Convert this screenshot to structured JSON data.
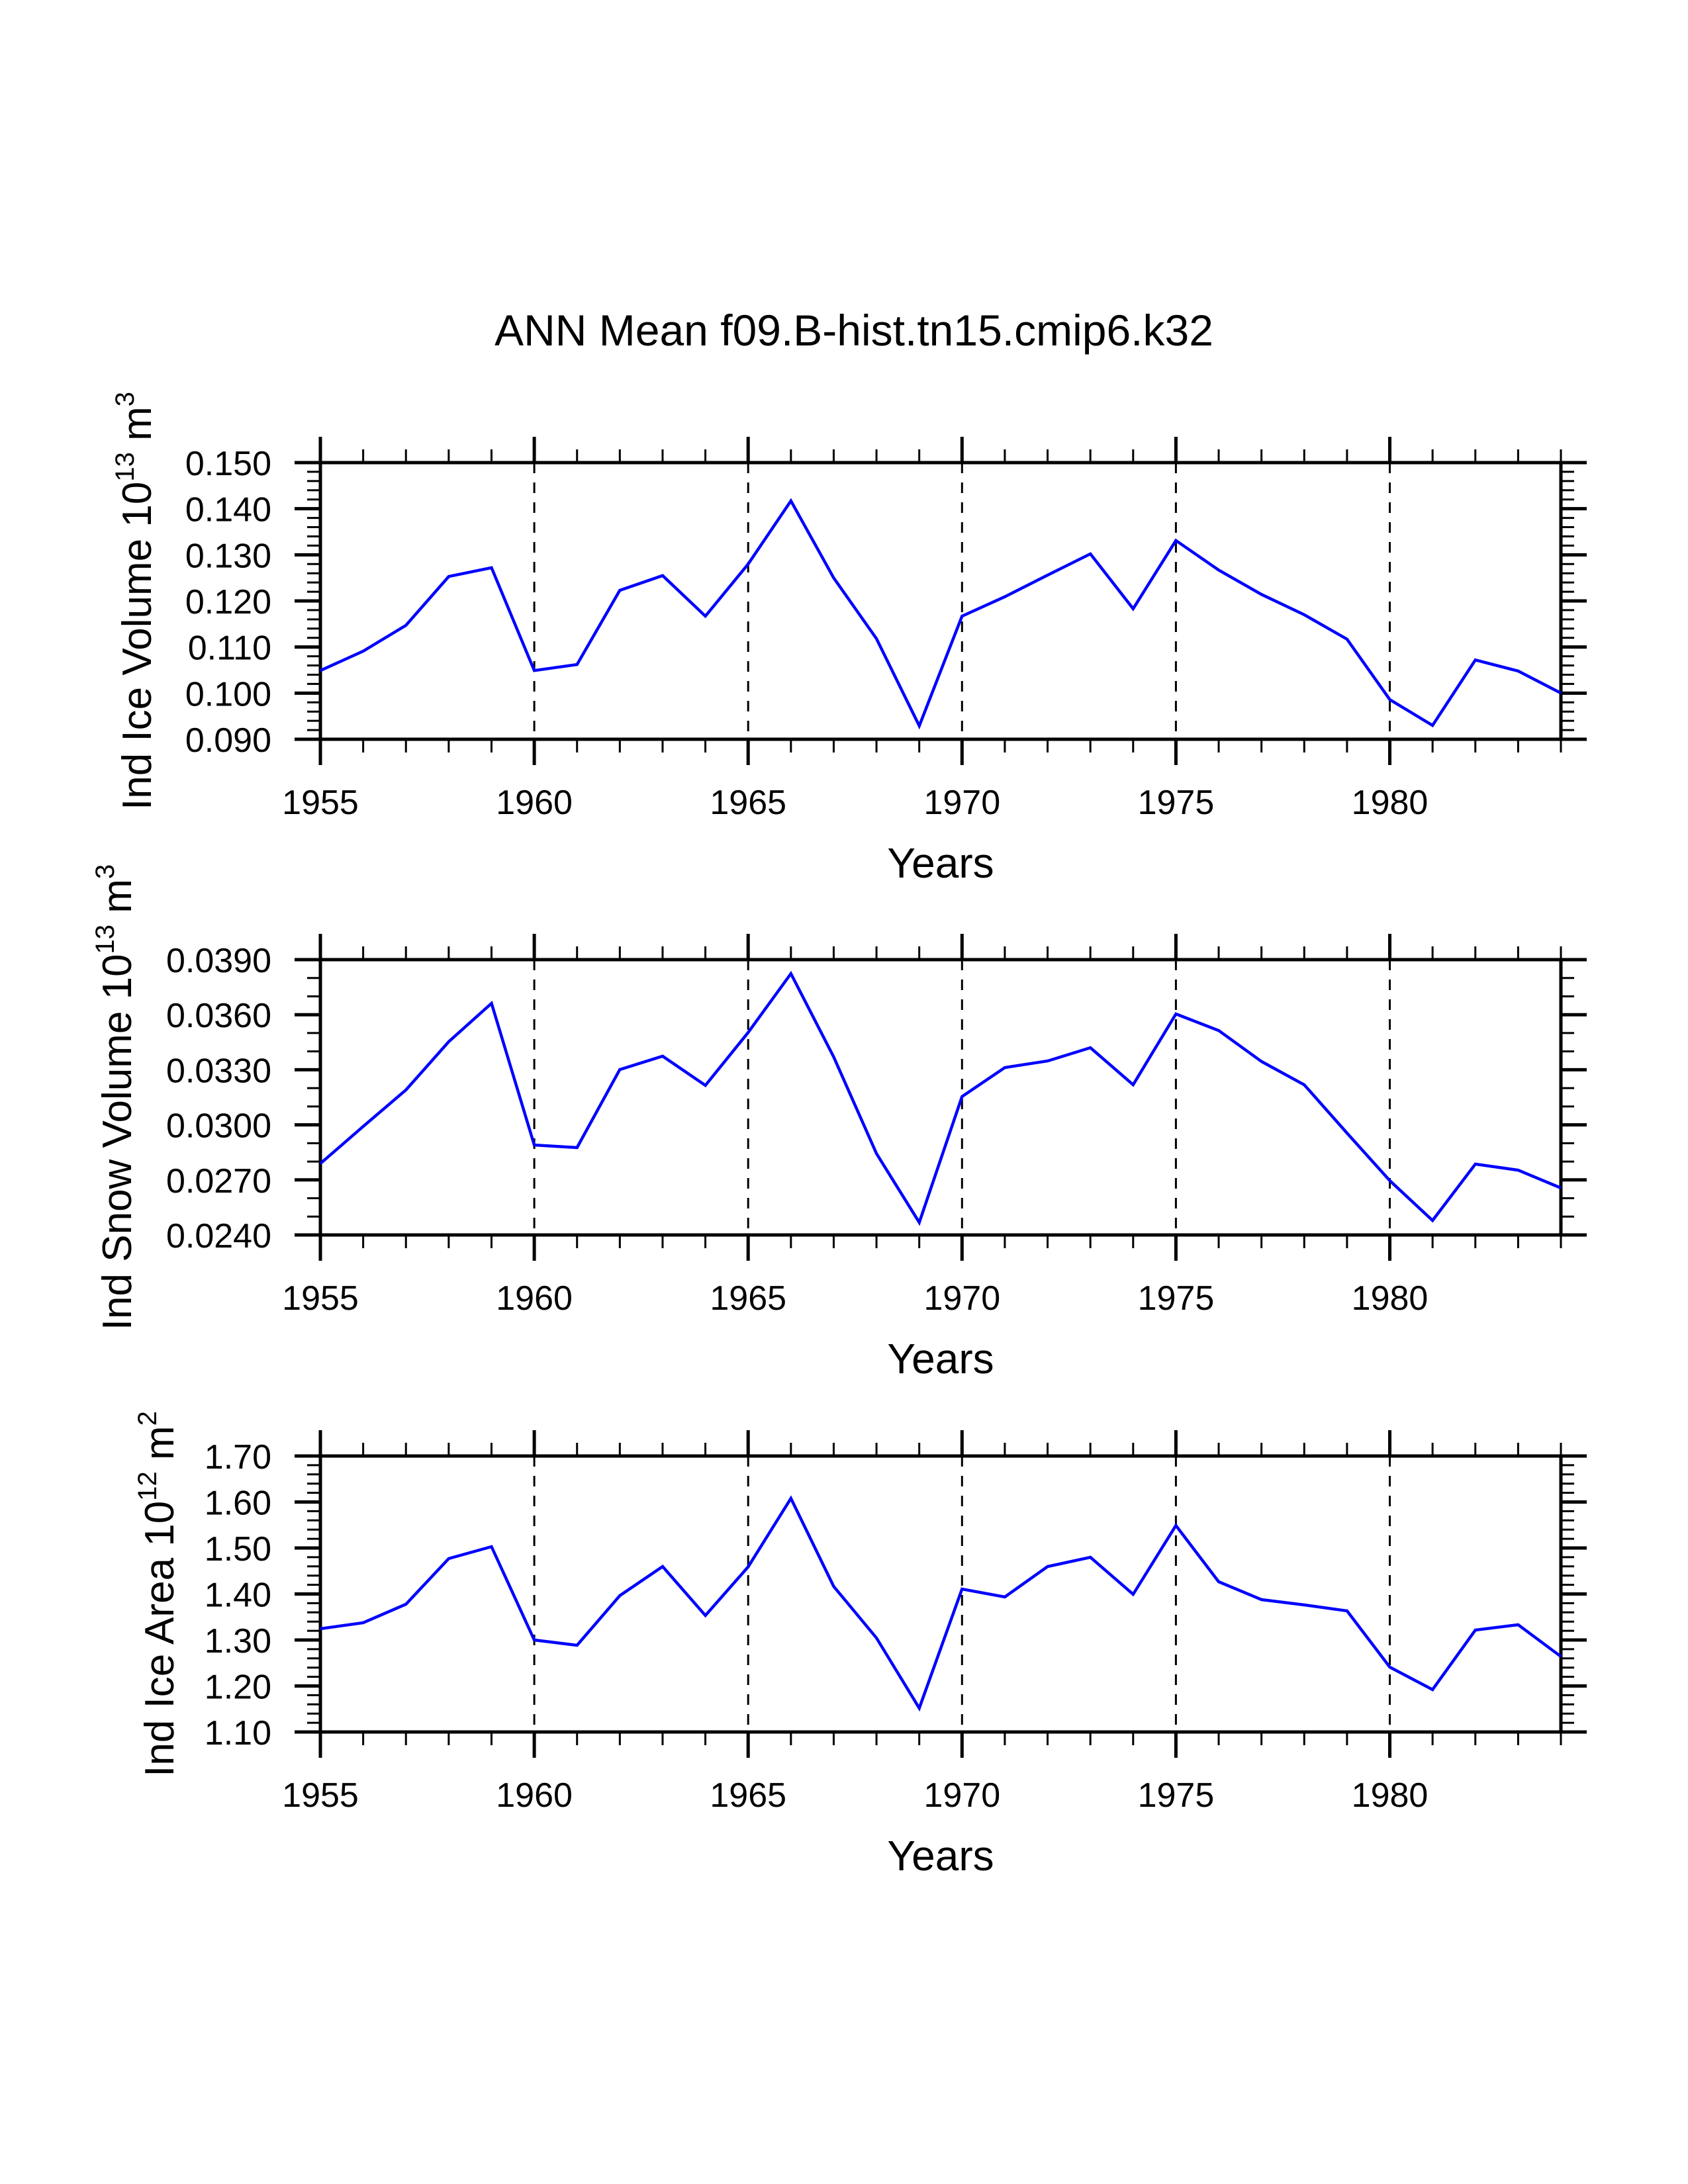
{
  "title": "ANN Mean f09.B-hist.tn15.cmip6.k32",
  "colors": {
    "line": "#0000ff",
    "axis": "#000000",
    "grid": "#000000",
    "background": "#ffffff"
  },
  "chart_data": [
    {
      "type": "line",
      "title": "ANN Mean f09.B-hist.tn15.cmip6.k32",
      "xlabel": "Years",
      "ylabel": {
        "text": "Ind Ice Volume 10",
        "exp": "13",
        "unit": " m",
        "unit_exp": "3"
      },
      "xlim": [
        1955,
        1984
      ],
      "ylim": [
        0.09,
        0.15
      ],
      "xticks": [
        1955,
        1960,
        1965,
        1970,
        1975,
        1980
      ],
      "xtick_labels": [
        "1955",
        "1960",
        "1965",
        "1970",
        "1975",
        "1980"
      ],
      "xminor_step": 1,
      "yticks": [
        0.09,
        0.1,
        0.11,
        0.12,
        0.13,
        0.14,
        0.15
      ],
      "ytick_labels": [
        "0.090",
        "0.100",
        "0.110",
        "0.120",
        "0.130",
        "0.140",
        "0.150"
      ],
      "yminor_step": 0.002,
      "grid": "vertical dashed at major x ticks",
      "series": [
        {
          "name": "Ind Ice Volume",
          "x": [
            1955,
            1956,
            1957,
            1958,
            1959,
            1960,
            1961,
            1962,
            1963,
            1964,
            1965,
            1966,
            1967,
            1968,
            1969,
            1970,
            1971,
            1972,
            1973,
            1974,
            1975,
            1976,
            1977,
            1978,
            1979,
            1980,
            1981,
            1982,
            1983,
            1984
          ],
          "values": [
            0.1049,
            0.1091,
            0.1147,
            0.1253,
            0.1272,
            0.1049,
            0.1062,
            0.1223,
            0.1255,
            0.1167,
            0.128,
            0.1417,
            0.125,
            0.1118,
            0.0929,
            0.1167,
            0.1209,
            0.1256,
            0.1302,
            0.1183,
            0.1331,
            0.1267,
            0.1214,
            0.117,
            0.1117,
            0.0986,
            0.093,
            0.1072,
            0.1048,
            0.1
          ]
        }
      ]
    },
    {
      "type": "line",
      "xlabel": "Years",
      "ylabel": {
        "text": "Ind Snow Volume 10",
        "exp": "13",
        "unit": " m",
        "unit_exp": "3"
      },
      "xlim": [
        1955,
        1984
      ],
      "ylim": [
        0.024,
        0.039
      ],
      "xticks": [
        1955,
        1960,
        1965,
        1970,
        1975,
        1980
      ],
      "xtick_labels": [
        "1955",
        "1960",
        "1965",
        "1970",
        "1975",
        "1980"
      ],
      "xminor_step": 1,
      "yticks": [
        0.024,
        0.027,
        0.03,
        0.033,
        0.036,
        0.039
      ],
      "ytick_labels": [
        "0.0240",
        "0.0270",
        "0.0300",
        "0.0330",
        "0.0360",
        "0.0390"
      ],
      "yminor_step": 0.001,
      "grid": "vertical dashed at major x ticks",
      "series": [
        {
          "name": "Ind Snow Volume",
          "x": [
            1955,
            1956,
            1957,
            1958,
            1959,
            1960,
            1961,
            1962,
            1963,
            1964,
            1965,
            1966,
            1967,
            1968,
            1969,
            1970,
            1971,
            1972,
            1973,
            1974,
            1975,
            1976,
            1977,
            1978,
            1979,
            1980,
            1981,
            1982,
            1983,
            1984
          ],
          "values": [
            0.02789,
            0.02991,
            0.0319,
            0.03453,
            0.03662,
            0.0289,
            0.02876,
            0.03301,
            0.03374,
            0.03215,
            0.03503,
            0.03824,
            0.0337,
            0.02843,
            0.02468,
            0.03154,
            0.03312,
            0.03348,
            0.0342,
            0.03218,
            0.03604,
            0.03514,
            0.03345,
            0.03218,
            0.02955,
            0.02696,
            0.02479,
            0.02786,
            0.02753,
            0.02656
          ]
        }
      ]
    },
    {
      "type": "line",
      "xlabel": "Years",
      "ylabel": {
        "text": "Ind Ice Area 10",
        "exp": "12",
        "unit": " m",
        "unit_exp": "2"
      },
      "xlim": [
        1955,
        1984
      ],
      "ylim": [
        1.1,
        1.7
      ],
      "xticks": [
        1955,
        1960,
        1965,
        1970,
        1975,
        1980
      ],
      "xtick_labels": [
        "1955",
        "1960",
        "1965",
        "1970",
        "1975",
        "1980"
      ],
      "xminor_step": 1,
      "yticks": [
        1.1,
        1.2,
        1.3,
        1.4,
        1.5,
        1.6,
        1.7
      ],
      "ytick_labels": [
        "1.10",
        "1.20",
        "1.30",
        "1.40",
        "1.50",
        "1.60",
        "1.70"
      ],
      "yminor_step": 0.02,
      "grid": "vertical dashed at major x ticks",
      "series": [
        {
          "name": "Ind Ice Area",
          "x": [
            1955,
            1956,
            1957,
            1958,
            1959,
            1960,
            1961,
            1962,
            1963,
            1964,
            1965,
            1966,
            1967,
            1968,
            1969,
            1970,
            1971,
            1972,
            1973,
            1974,
            1975,
            1976,
            1977,
            1978,
            1979,
            1980,
            1981,
            1982,
            1983,
            1984
          ],
          "values": [
            1.3245,
            1.3374,
            1.3777,
            1.477,
            1.5029,
            1.3,
            1.2885,
            1.3964,
            1.4597,
            1.3532,
            1.459,
            1.6079,
            1.4165,
            1.3043,
            1.1518,
            1.4108,
            1.3935,
            1.4597,
            1.4799,
            1.3993,
            1.5489,
            1.4266,
            1.3878,
            1.3763,
            1.3633,
            1.241,
            1.1921,
            1.3216,
            1.3331,
            1.264
          ]
        }
      ]
    }
  ]
}
